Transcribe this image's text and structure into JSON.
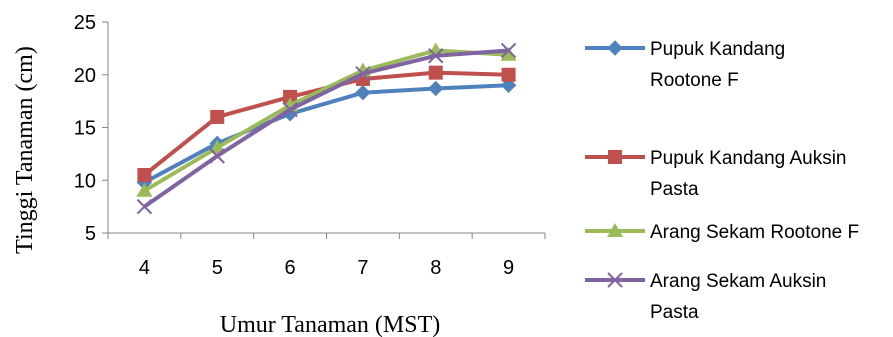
{
  "chart_data": {
    "type": "line",
    "title": "",
    "xlabel": "Umur Tanaman (MST)",
    "ylabel": "Tinggi Tanaman (cm)",
    "x": [
      4,
      5,
      6,
      7,
      8,
      9
    ],
    "ylim": [
      5,
      25
    ],
    "yticks": [
      5,
      10,
      15,
      20,
      25
    ],
    "grid": false,
    "legend_position": "right",
    "series": [
      {
        "name": "Pupuk Kandang Rootone F",
        "legend_lines": [
          "Pupuk Kandang",
          "Rootone F"
        ],
        "color": "#4F81BD",
        "marker": "diamond",
        "values": [
          9.8,
          13.5,
          16.3,
          18.3,
          18.7,
          19.0
        ]
      },
      {
        "name": "Pupuk Kandang Auksin Pasta",
        "legend_lines": [
          "Pupuk Kandang Auksin",
          "Pasta"
        ],
        "color": "#C0504D",
        "marker": "square",
        "values": [
          10.5,
          16.0,
          17.9,
          19.6,
          20.2,
          20.0
        ]
      },
      {
        "name": "Arang Sekam Rootone F",
        "legend_lines": [
          "Arang Sekam Rootone F"
        ],
        "color": "#9BBB59",
        "marker": "triangle",
        "values": [
          9.0,
          13.1,
          17.1,
          20.4,
          22.3,
          21.9
        ]
      },
      {
        "name": "Arang Sekam Auksin Pasta",
        "legend_lines": [
          "Arang Sekam Auksin",
          "Pasta"
        ],
        "color": "#8064A2",
        "marker": "x",
        "values": [
          7.5,
          12.3,
          16.7,
          20.1,
          21.8,
          22.3
        ]
      }
    ]
  }
}
